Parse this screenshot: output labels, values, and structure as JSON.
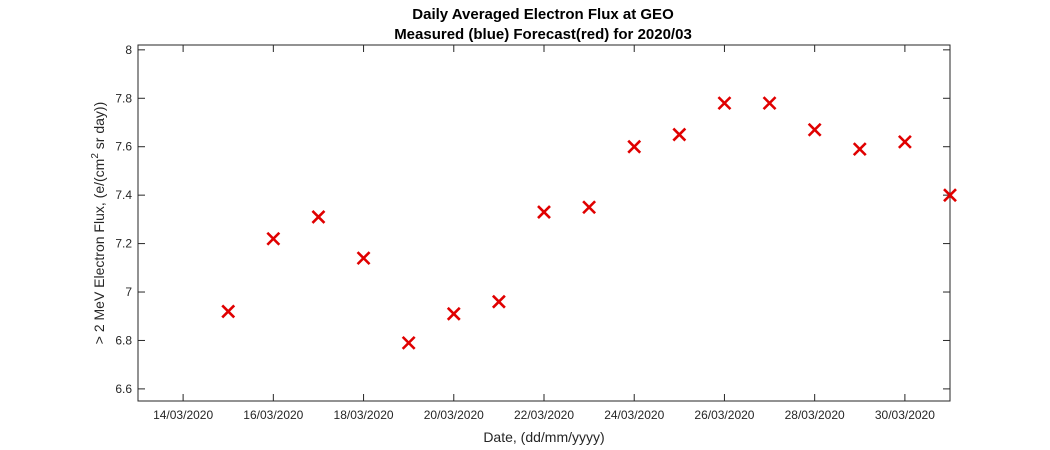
{
  "chart_data": {
    "type": "scatter",
    "title": "Daily Averaged Electron Flux at GEO",
    "subtitle": "Measured (blue) Forecast(red) for 2020/03",
    "xlabel": "Date, (dd/mm/yyyy)",
    "ylabel_prefix": "> 2 MeV Electron Flux, (e/(cm",
    "ylabel_sup": "2",
    "ylabel_suffix": " sr day))",
    "xlim": [
      "2020-03-13",
      "2020-03-31"
    ],
    "ylim": [
      6.55,
      8.02
    ],
    "x_tick_values": [
      "2020-03-14",
      "2020-03-16",
      "2020-03-18",
      "2020-03-20",
      "2020-03-22",
      "2020-03-24",
      "2020-03-26",
      "2020-03-28",
      "2020-03-30"
    ],
    "x_tick_labels": [
      "14/03/2020",
      "16/03/2020",
      "18/03/2020",
      "20/03/2020",
      "22/03/2020",
      "24/03/2020",
      "26/03/2020",
      "28/03/2020",
      "30/03/2020"
    ],
    "y_ticks": [
      6.6,
      6.8,
      7,
      7.2,
      7.4,
      7.6,
      7.8,
      8
    ],
    "y_tick_labels": [
      "6.6",
      "6.8",
      "7",
      "7.2",
      "7.4",
      "7.6",
      "7.8",
      "8"
    ],
    "grid": false,
    "series": [
      {
        "color": "#e00000",
        "marker": "x",
        "x": [
          "2020-03-15",
          "2020-03-16",
          "2020-03-17",
          "2020-03-18",
          "2020-03-19",
          "2020-03-20",
          "2020-03-21",
          "2020-03-22",
          "2020-03-23",
          "2020-03-24",
          "2020-03-25",
          "2020-03-26",
          "2020-03-27",
          "2020-03-28",
          "2020-03-29",
          "2020-03-30",
          "2020-03-31"
        ],
        "y": [
          6.92,
          7.22,
          7.31,
          7.14,
          6.79,
          6.91,
          6.96,
          7.33,
          7.35,
          7.6,
          7.65,
          7.78,
          7.78,
          7.67,
          7.59,
          7.62,
          7.4
        ]
      }
    ]
  }
}
